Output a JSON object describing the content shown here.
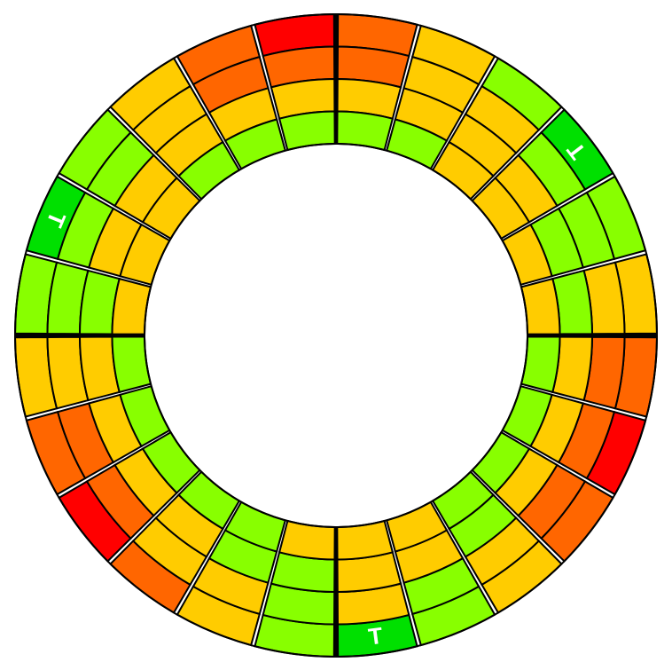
{
  "ring": {
    "sectors": [
      {
        "cells": [
          {
            "color": "#ff6600"
          },
          {
            "color": "#ff6600"
          },
          {
            "color": "#ffcc00"
          },
          {
            "color": "#88ff00"
          }
        ]
      },
      {
        "cells": [
          {
            "color": "#ffcc00"
          },
          {
            "color": "#ffcc00"
          },
          {
            "color": "#ffcc00"
          },
          {
            "color": "#88ff00"
          }
        ]
      },
      {
        "cells": [
          {
            "color": "#88ff00"
          },
          {
            "color": "#ffcc00"
          },
          {
            "color": "#ffcc00"
          },
          {
            "color": "#ffcc00"
          }
        ]
      },
      {
        "cells": [
          {
            "color": "#00e000",
            "label": "T"
          },
          {
            "color": "#88ff00"
          },
          {
            "color": "#ffcc00"
          },
          {
            "color": "#ffcc00"
          }
        ]
      },
      {
        "cells": [
          {
            "color": "#88ff00"
          },
          {
            "color": "#88ff00"
          },
          {
            "color": "#88ff00"
          },
          {
            "color": "#ffcc00"
          }
        ]
      },
      {
        "cells": [
          {
            "color": "#ffcc00"
          },
          {
            "color": "#ffcc00"
          },
          {
            "color": "#88ff00"
          },
          {
            "color": "#ffcc00"
          }
        ]
      },
      {
        "cells": [
          {
            "color": "#ff6600"
          },
          {
            "color": "#ff6600"
          },
          {
            "color": "#ffcc00"
          },
          {
            "color": "#88ff00"
          }
        ]
      },
      {
        "cells": [
          {
            "color": "#ff0000"
          },
          {
            "color": "#ff6600"
          },
          {
            "color": "#ffcc00"
          },
          {
            "color": "#88ff00"
          }
        ]
      },
      {
        "cells": [
          {
            "color": "#ff6600"
          },
          {
            "color": "#ff6600"
          },
          {
            "color": "#ffcc00"
          },
          {
            "color": "#88ff00"
          }
        ]
      },
      {
        "cells": [
          {
            "color": "#ffcc00"
          },
          {
            "color": "#ffcc00"
          },
          {
            "color": "#88ff00"
          },
          {
            "color": "#88ff00"
          }
        ]
      },
      {
        "cells": [
          {
            "color": "#88ff00"
          },
          {
            "color": "#88ff00"
          },
          {
            "color": "#ffcc00"
          },
          {
            "color": "#ffcc00"
          }
        ]
      },
      {
        "cells": [
          {
            "color": "#00e000",
            "label": "T"
          },
          {
            "color": "#ffcc00"
          },
          {
            "color": "#ffcc00"
          },
          {
            "color": "#ffcc00"
          }
        ]
      },
      {
        "cells": [
          {
            "color": "#88ff00"
          },
          {
            "color": "#88ff00"
          },
          {
            "color": "#88ff00"
          },
          {
            "color": "#ffcc00"
          }
        ]
      },
      {
        "cells": [
          {
            "color": "#ffcc00"
          },
          {
            "color": "#ffcc00"
          },
          {
            "color": "#88ff00"
          },
          {
            "color": "#88ff00"
          }
        ]
      },
      {
        "cells": [
          {
            "color": "#ff6600"
          },
          {
            "color": "#ffcc00"
          },
          {
            "color": "#ffcc00"
          },
          {
            "color": "#88ff00"
          }
        ]
      },
      {
        "cells": [
          {
            "color": "#ff0000"
          },
          {
            "color": "#ff6600"
          },
          {
            "color": "#ffcc00"
          },
          {
            "color": "#88ff00"
          }
        ]
      },
      {
        "cells": [
          {
            "color": "#ff6600"
          },
          {
            "color": "#ff6600"
          },
          {
            "color": "#ffcc00"
          },
          {
            "color": "#88ff00"
          }
        ]
      },
      {
        "cells": [
          {
            "color": "#ffcc00"
          },
          {
            "color": "#ffcc00"
          },
          {
            "color": "#ffcc00"
          },
          {
            "color": "#88ff00"
          }
        ]
      },
      {
        "cells": [
          {
            "color": "#88ff00"
          },
          {
            "color": "#88ff00"
          },
          {
            "color": "#88ff00"
          },
          {
            "color": "#ffcc00"
          }
        ]
      },
      {
        "cells": [
          {
            "color": "#00e000",
            "label": "T"
          },
          {
            "color": "#88ff00"
          },
          {
            "color": "#ffcc00"
          },
          {
            "color": "#ffcc00"
          }
        ]
      },
      {
        "cells": [
          {
            "color": "#88ff00"
          },
          {
            "color": "#88ff00"
          },
          {
            "color": "#ffcc00"
          },
          {
            "color": "#ffcc00"
          }
        ]
      },
      {
        "cells": [
          {
            "color": "#ffcc00"
          },
          {
            "color": "#ffcc00"
          },
          {
            "color": "#ffcc00"
          },
          {
            "color": "#88ff00"
          }
        ]
      },
      {
        "cells": [
          {
            "color": "#ff6600"
          },
          {
            "color": "#ff6600"
          },
          {
            "color": "#ffcc00"
          },
          {
            "color": "#88ff00"
          }
        ]
      },
      {
        "cells": [
          {
            "color": "#ff0000"
          },
          {
            "color": "#ff6600"
          },
          {
            "color": "#ffcc00"
          },
          {
            "color": "#88ff00"
          }
        ]
      }
    ]
  }
}
